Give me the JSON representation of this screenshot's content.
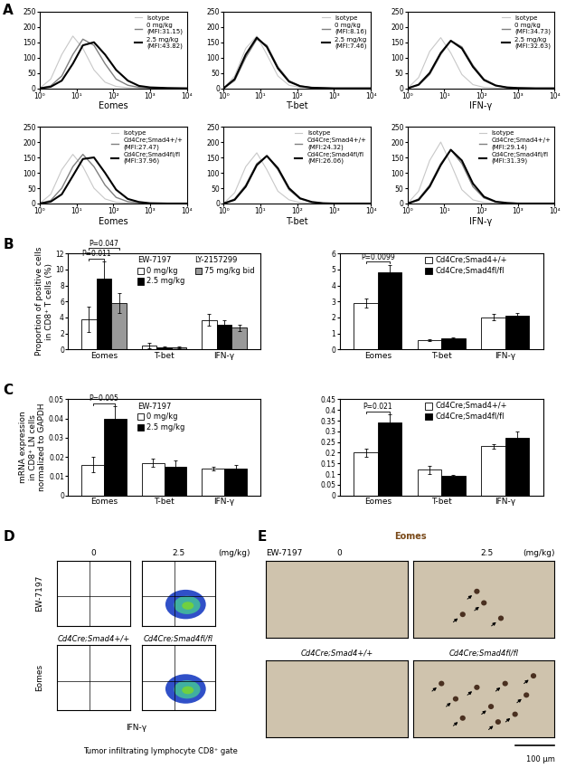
{
  "chart_data": [
    {
      "type": "line",
      "log": "x",
      "x_label": "Eomes",
      "legend": "upper right",
      "x": [
        1,
        2,
        4,
        8,
        15,
        30,
        60,
        120,
        250,
        500,
        1000,
        3000,
        10000
      ],
      "xlim": [
        1,
        10000
      ],
      "xticks": [
        {
          "value": 1,
          "label": "10⁰"
        },
        {
          "value": 10,
          "label": "10¹"
        },
        {
          "value": 100,
          "label": "10²"
        },
        {
          "value": 1000,
          "label": "10³"
        },
        {
          "value": 10000,
          "label": "10⁴"
        }
      ],
      "ylim": [
        0,
        250
      ],
      "yticks": [
        0,
        50,
        100,
        150,
        200,
        250
      ],
      "series": [
        {
          "name": "Isotype",
          "color": "#c8c8c8",
          "values": [
            0,
            30,
            110,
            170,
            130,
            60,
            20,
            6,
            2,
            1,
            0,
            0,
            0
          ]
        },
        {
          "name": "0 mg/kg\n(MFI:31.15)",
          "color": "#808080",
          "values": [
            0,
            8,
            40,
            110,
            160,
            140,
            80,
            30,
            10,
            3,
            1,
            0,
            0
          ]
        },
        {
          "name": "2.5 mg/kg\n(MFI:43.82)",
          "color": "#000000",
          "values": [
            0,
            5,
            25,
            80,
            140,
            150,
            110,
            60,
            25,
            8,
            3,
            1,
            0
          ]
        }
      ]
    },
    {
      "type": "line",
      "log": "x",
      "x_label": "T-bet",
      "legend": "upper right",
      "x": [
        1,
        2,
        4,
        8,
        15,
        30,
        60,
        120,
        250,
        500,
        1000,
        3000,
        10000
      ],
      "xlim": [
        1,
        10000
      ],
      "xticks": [
        {
          "value": 1,
          "label": "10⁰"
        },
        {
          "value": 10,
          "label": "10¹"
        },
        {
          "value": 100,
          "label": "10²"
        },
        {
          "value": 1000,
          "label": "10³"
        },
        {
          "value": 10000,
          "label": "10⁴"
        }
      ],
      "ylim": [
        0,
        250
      ],
      "yticks": [
        0,
        50,
        100,
        150,
        200,
        250
      ],
      "series": [
        {
          "name": "Isotype",
          "color": "#c8c8c8",
          "values": [
            0,
            40,
            130,
            170,
            110,
            40,
            10,
            3,
            1,
            0,
            0,
            0,
            0
          ]
        },
        {
          "name": "0 mg/kg\n(MFI:8.16)",
          "color": "#808080",
          "values": [
            0,
            25,
            100,
            160,
            140,
            70,
            25,
            8,
            2,
            1,
            0,
            0,
            0
          ]
        },
        {
          "name": "2.5 mg/kg\n(MFI:7.46)",
          "color": "#000000",
          "values": [
            0,
            30,
            110,
            165,
            135,
            65,
            22,
            7,
            2,
            1,
            0,
            0,
            0
          ]
        }
      ]
    },
    {
      "type": "line",
      "log": "x",
      "x_label": "IFN-γ",
      "legend": "upper right",
      "x": [
        1,
        2,
        4,
        8,
        15,
        30,
        60,
        120,
        250,
        500,
        1000,
        3000,
        10000
      ],
      "xlim": [
        1,
        10000
      ],
      "xticks": [
        {
          "value": 1,
          "label": "10⁰"
        },
        {
          "value": 10,
          "label": "10¹"
        },
        {
          "value": 100,
          "label": "10²"
        },
        {
          "value": 1000,
          "label": "10³"
        },
        {
          "value": 10000,
          "label": "10⁴"
        }
      ],
      "ylim": [
        0,
        250
      ],
      "yticks": [
        0,
        50,
        100,
        150,
        200,
        250
      ],
      "series": [
        {
          "name": "Isotype",
          "color": "#c8c8c8",
          "values": [
            0,
            35,
            120,
            165,
            115,
            45,
            12,
            3,
            1,
            0,
            0,
            0,
            0
          ]
        },
        {
          "name": "0 mg/kg\n(MFI:34.73)",
          "color": "#808080",
          "values": [
            0,
            10,
            45,
            110,
            155,
            135,
            75,
            30,
            10,
            3,
            1,
            0,
            0
          ]
        },
        {
          "name": "2.5 mg/kg\n(MFI:32.63)",
          "color": "#000000",
          "values": [
            0,
            12,
            50,
            115,
            155,
            130,
            70,
            27,
            9,
            3,
            1,
            0,
            0
          ]
        }
      ]
    },
    {
      "type": "line",
      "log": "x",
      "x_label": "Eomes",
      "legend": "upper right",
      "x": [
        1,
        2,
        4,
        8,
        15,
        30,
        60,
        120,
        250,
        500,
        1000,
        3000,
        10000
      ],
      "xlim": [
        1,
        10000
      ],
      "xticks": [
        {
          "value": 1,
          "label": "10⁰"
        },
        {
          "value": 10,
          "label": "10¹"
        },
        {
          "value": 100,
          "label": "10²"
        },
        {
          "value": 1000,
          "label": "10³"
        },
        {
          "value": 10000,
          "label": "10⁴"
        }
      ],
      "ylim": [
        0,
        250
      ],
      "yticks": [
        0,
        50,
        100,
        150,
        200,
        250
      ],
      "series": [
        {
          "name": "Isotype",
          "color": "#c8c8c8",
          "values": [
            0,
            30,
            110,
            160,
            120,
            50,
            15,
            4,
            1,
            0,
            0,
            0,
            0
          ]
        },
        {
          "name": "Cd4Cre;Smad4+/+\n(MFI:27.47)",
          "color": "#808080",
          "values": [
            0,
            10,
            50,
            120,
            160,
            120,
            60,
            20,
            6,
            2,
            0,
            0,
            0
          ]
        },
        {
          "name": "Cd4Cre;Smad4fl/fl\n(MFI:37.96)",
          "color": "#000000",
          "values": [
            0,
            6,
            30,
            90,
            145,
            150,
            100,
            45,
            15,
            5,
            1,
            0,
            0
          ]
        }
      ]
    },
    {
      "type": "line",
      "log": "x",
      "x_label": "T-bet",
      "legend": "upper right",
      "x": [
        1,
        2,
        4,
        8,
        15,
        30,
        60,
        120,
        250,
        500,
        1000,
        3000,
        10000
      ],
      "xlim": [
        1,
        10000
      ],
      "xticks": [
        {
          "value": 1,
          "label": "10⁰"
        },
        {
          "value": 10,
          "label": "10¹"
        },
        {
          "value": 100,
          "label": "10²"
        },
        {
          "value": 1000,
          "label": "10³"
        },
        {
          "value": 10000,
          "label": "10⁴"
        }
      ],
      "ylim": [
        0,
        250
      ],
      "yticks": [
        0,
        50,
        100,
        150,
        200,
        250
      ],
      "series": [
        {
          "name": "Isotype",
          "color": "#c8c8c8",
          "values": [
            0,
            35,
            120,
            165,
            110,
            40,
            12,
            3,
            1,
            0,
            0,
            0,
            0
          ]
        },
        {
          "name": "Cd4Cre;Smad4+/+\n(MFI:24.32)",
          "color": "#808080",
          "values": [
            0,
            15,
            60,
            130,
            155,
            110,
            45,
            15,
            4,
            1,
            0,
            0,
            0
          ]
        },
        {
          "name": "Cd4Cre;Smad4fl/fl\n(MFI:26.06)",
          "color": "#000000",
          "values": [
            0,
            12,
            55,
            125,
            155,
            115,
            50,
            17,
            5,
            1,
            0,
            0,
            0
          ]
        }
      ]
    },
    {
      "type": "line",
      "log": "x",
      "x_label": "IFN-γ",
      "legend": "upper right",
      "x": [
        1,
        2,
        4,
        8,
        15,
        30,
        60,
        120,
        250,
        500,
        1000,
        3000,
        10000
      ],
      "xlim": [
        1,
        10000
      ],
      "xticks": [
        {
          "value": 1,
          "label": "10⁰"
        },
        {
          "value": 10,
          "label": "10¹"
        },
        {
          "value": 100,
          "label": "10²"
        },
        {
          "value": 1000,
          "label": "10³"
        },
        {
          "value": 10000,
          "label": "10⁴"
        }
      ],
      "ylim": [
        0,
        250
      ],
      "yticks": [
        0,
        50,
        100,
        150,
        200,
        250
      ],
      "series": [
        {
          "name": "Isotype",
          "color": "#c8c8c8",
          "values": [
            0,
            40,
            140,
            200,
            130,
            45,
            12,
            3,
            1,
            0,
            0,
            0,
            0
          ]
        },
        {
          "name": "Cd4Cre;Smad4+/+\n(MFI:29.14)",
          "color": "#808080",
          "values": [
            0,
            15,
            60,
            130,
            175,
            130,
            55,
            18,
            5,
            1,
            0,
            0,
            0
          ]
        },
        {
          "name": "Cd4Cre;Smad4fl/fl\n(MFI:31.39)",
          "color": "#000000",
          "values": [
            0,
            12,
            55,
            125,
            175,
            140,
            65,
            22,
            6,
            2,
            0,
            0,
            0
          ]
        }
      ]
    },
    {
      "type": "bar",
      "y_label": "Proportion of positive cells\nin CD8⁺ T cells (%)",
      "categories": [
        "Eomes",
        "T-bet",
        "IFN-γ"
      ],
      "ylim": [
        0,
        12
      ],
      "yticks": [
        0,
        2,
        4,
        6,
        8,
        10,
        12
      ],
      "series": [
        {
          "name": "0 mg/kg",
          "group": "EW-7197",
          "color": "#ffffff",
          "values": [
            3.8,
            0.5,
            3.7
          ],
          "errors": [
            1.6,
            0.3,
            0.7
          ]
        },
        {
          "name": "2.5 mg/kg",
          "group": "EW-7197",
          "color": "#000000",
          "values": [
            8.9,
            0.3,
            3.1
          ],
          "errors": [
            2.1,
            0.1,
            0.5
          ]
        },
        {
          "name": "75 mg/kg bid",
          "group": "LY-2157299",
          "color": "#999999",
          "values": [
            5.8,
            0.3,
            2.7
          ],
          "errors": [
            1.2,
            0.1,
            0.4
          ]
        }
      ],
      "annotations": [
        {
          "text": "P=0.011",
          "category": "Eomes",
          "series": [
            0,
            1
          ]
        },
        {
          "text": "P=0.047",
          "category": "Eomes",
          "series": [
            0,
            2
          ]
        }
      ]
    },
    {
      "type": "bar",
      "categories": [
        "Eomes",
        "T-bet",
        "IFN-γ"
      ],
      "ylim": [
        0,
        6
      ],
      "yticks": [
        0,
        1,
        2,
        3,
        4,
        5,
        6
      ],
      "series": [
        {
          "name": "Cd4Cre;Smad4+/+",
          "color": "#ffffff",
          "values": [
            2.9,
            0.6,
            2.0
          ],
          "errors": [
            0.3,
            0.05,
            0.2
          ]
        },
        {
          "name": "Cd4Cre;Smad4fl/fl",
          "color": "#000000",
          "values": [
            4.8,
            0.7,
            2.1
          ],
          "errors": [
            0.5,
            0.05,
            0.2
          ]
        }
      ],
      "annotations": [
        {
          "text": "P=0.0099",
          "category": "Eomes",
          "series": [
            0,
            1
          ]
        }
      ]
    },
    {
      "type": "bar",
      "y_label": "mRNA expression\nin CD8⁺ LN cells\nnormalized to GAPDH",
      "categories": [
        "Eomes",
        "T-bet",
        "IFN-γ"
      ],
      "ylim": [
        0,
        0.05
      ],
      "yticks": [
        0,
        0.01,
        0.02,
        0.03,
        0.04,
        0.05
      ],
      "series": [
        {
          "name": "0 mg/kg",
          "group": "EW-7197",
          "color": "#ffffff",
          "values": [
            0.016,
            0.017,
            0.014
          ],
          "errors": [
            0.004,
            0.002,
            0.001
          ]
        },
        {
          "name": "2.5 mg/kg",
          "group": "EW-7197",
          "color": "#000000",
          "values": [
            0.04,
            0.015,
            0.014
          ],
          "errors": [
            0.0065,
            0.003,
            0.002
          ]
        }
      ],
      "annotations": [
        {
          "text": "P=0.005",
          "category": "Eomes",
          "series": [
            0,
            1
          ]
        }
      ]
    },
    {
      "type": "bar",
      "categories": [
        "Eomes",
        "T-bet",
        "IFN-γ"
      ],
      "ylim": [
        0,
        0.45
      ],
      "yticks": [
        0,
        0.05,
        0.1,
        0.15,
        0.2,
        0.25,
        0.3,
        0.35,
        0.4,
        0.45
      ],
      "series": [
        {
          "name": "Cd4Cre;Smad4+/+",
          "color": "#ffffff",
          "values": [
            0.2,
            0.12,
            0.23
          ],
          "errors": [
            0.02,
            0.02,
            0.01
          ]
        },
        {
          "name": "Cd4Cre;Smad4fl/fl",
          "color": "#000000",
          "values": [
            0.34,
            0.09,
            0.27
          ],
          "errors": [
            0.04,
            0.005,
            0.03
          ]
        }
      ],
      "annotations": [
        {
          "text": "P=0.021",
          "category": "Eomes",
          "series": [
            0,
            1
          ]
        }
      ]
    }
  ],
  "panel_labels": [
    "A",
    "B",
    "C",
    "D",
    "E"
  ],
  "panel_D": {
    "row_label_top": "EW-7197",
    "column_labels": [
      "0",
      "2.5"
    ],
    "unit": "(mg/kg)",
    "row_labels_bottom": [
      "Cd4Cre;Smad4+/+",
      "Cd4Cre;Smad4fl/fl"
    ],
    "y_label": "Eomes",
    "x_label": "IFN-γ",
    "gate": "Tumor infiltrating lymphocyte CD8⁺ gate",
    "tick_labels": false
  },
  "panel_E": {
    "title": "Eomes",
    "row_label_top": "EW-7197",
    "column_labels": [
      "0",
      "2.5"
    ],
    "unit": "(mg/kg)",
    "row_labels_bottom": [
      "Cd4Cre;Smad4+/+",
      "Cd4Cre;Smad4fl/fl"
    ],
    "scale_bar": "100 μm"
  }
}
